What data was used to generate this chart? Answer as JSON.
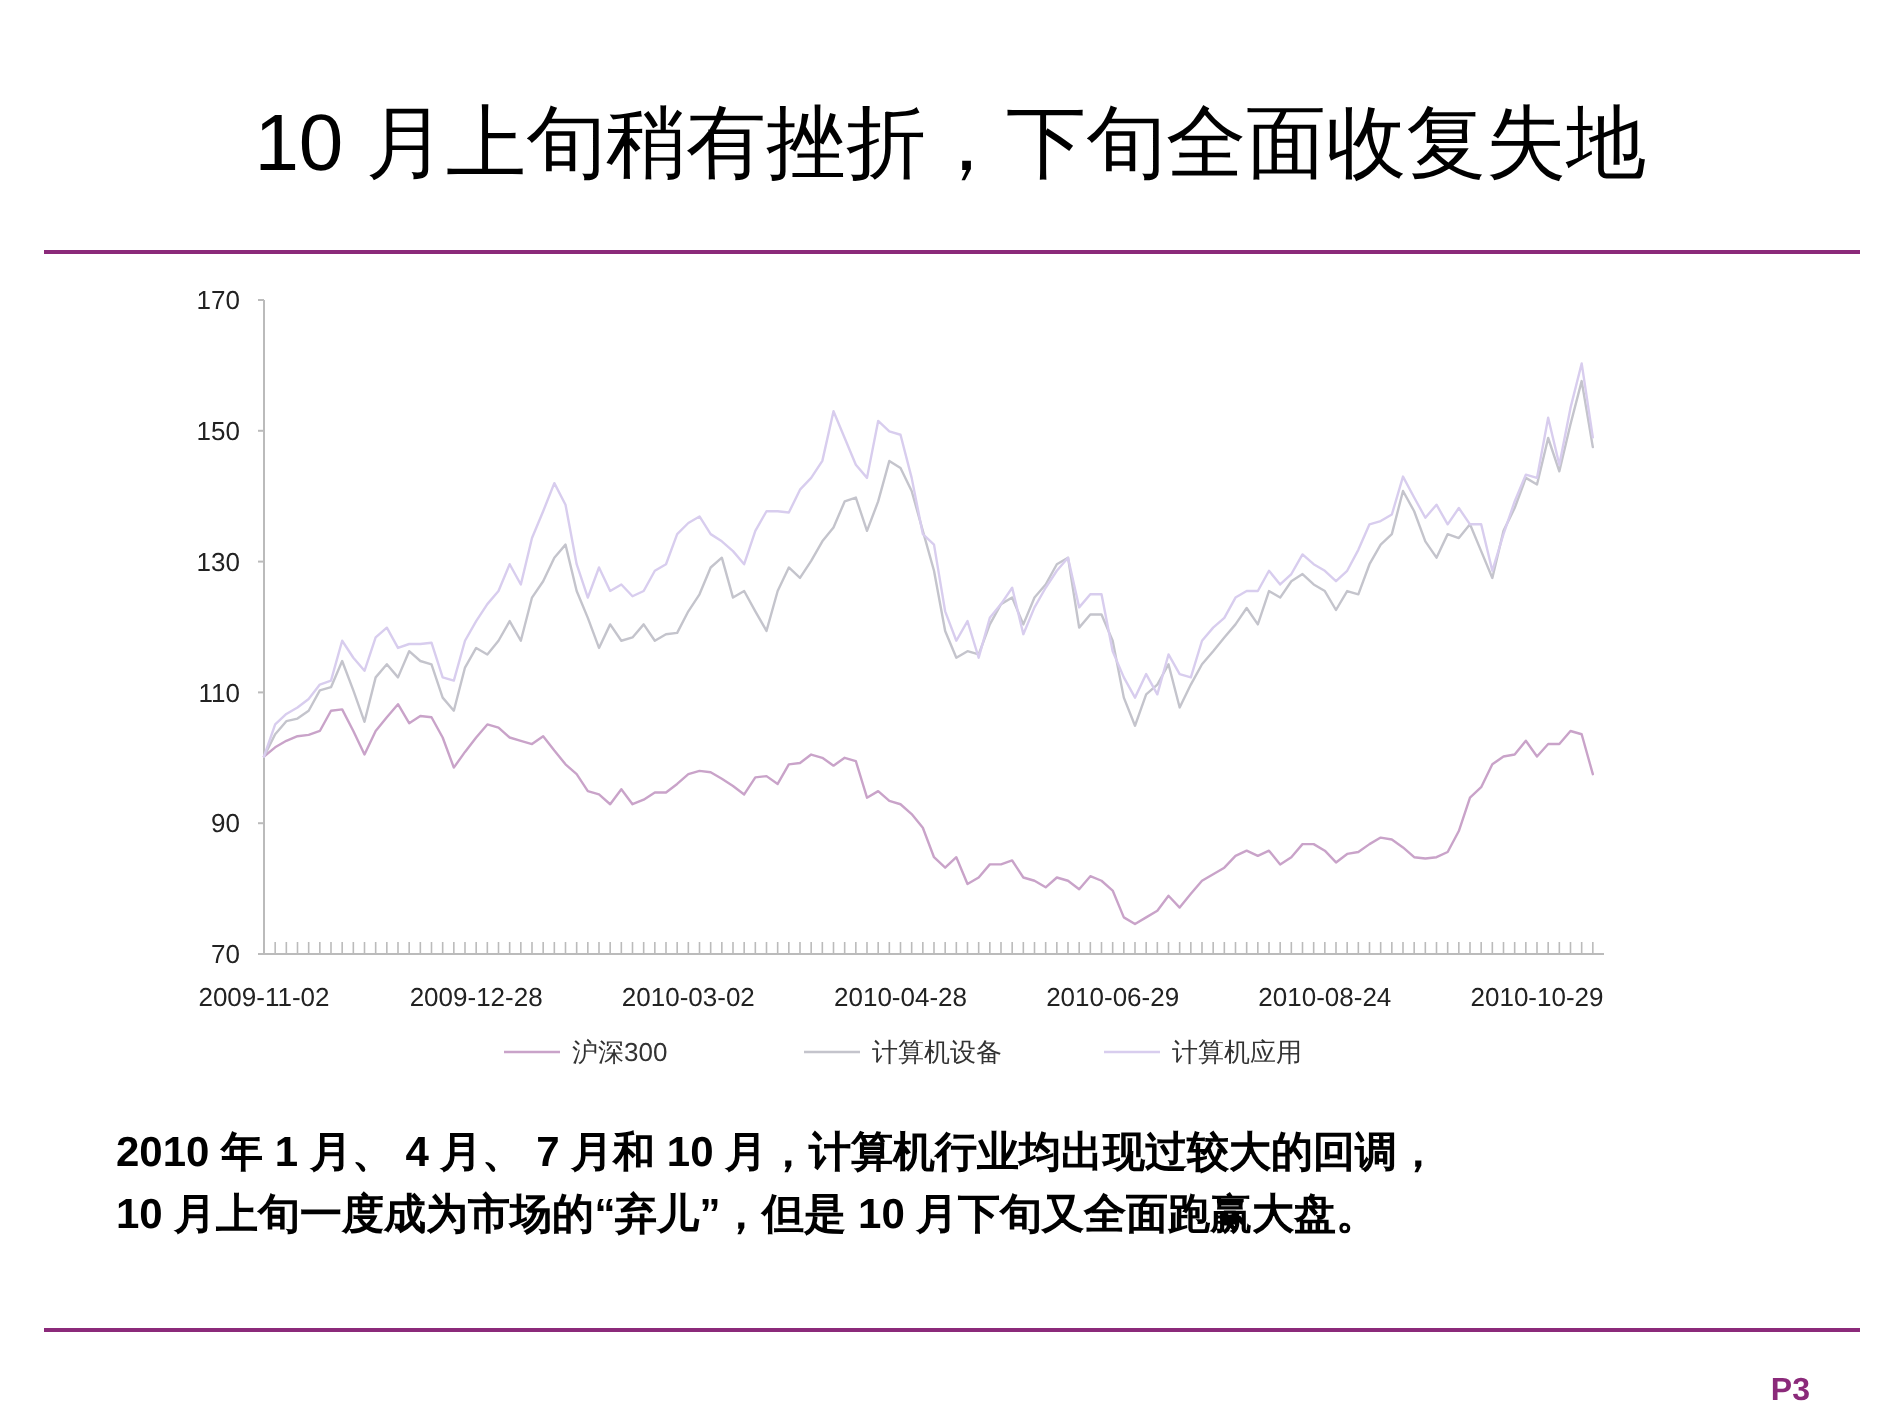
{
  "chart_data": {
    "type": "line",
    "title": "10 月上旬稍有挫折，下旬全面收复失地",
    "annotations": [
      "2010 年 1 月、 4 月、 7 月和 10 月，计算机行业均出现过较大的回调，",
      "10 月上旬一度成为市场的“弃儿”，但是 10 月下旬又全面跑赢大盘。",
      "P3"
    ],
    "categories": [
      "2009-11-02",
      null,
      null,
      null,
      null,
      null,
      null,
      null,
      null,
      null,
      null,
      null,
      null,
      null,
      null,
      null,
      null,
      null,
      null,
      "2009-12-28",
      null,
      null,
      null,
      null,
      null,
      null,
      null,
      null,
      null,
      null,
      null,
      null,
      null,
      null,
      null,
      null,
      null,
      null,
      "2010-03-02",
      null,
      null,
      null,
      null,
      null,
      null,
      null,
      null,
      null,
      null,
      null,
      null,
      null,
      null,
      null,
      null,
      null,
      null,
      "2010-04-28",
      null,
      null,
      null,
      null,
      null,
      null,
      null,
      null,
      null,
      null,
      null,
      null,
      null,
      null,
      null,
      null,
      null,
      null,
      "2010-06-29",
      null,
      null,
      null,
      null,
      null,
      null,
      null,
      null,
      null,
      null,
      null,
      null,
      null,
      null,
      null,
      null,
      null,
      null,
      "2010-08-24",
      null,
      null,
      null,
      null,
      null,
      null,
      null,
      null,
      null,
      null,
      null,
      null,
      null,
      null,
      null,
      null,
      null,
      null,
      "2010-10-29",
      null,
      null,
      null,
      null,
      null
    ],
    "ylim": [
      70,
      170
    ],
    "yticks": [
      70,
      90,
      110,
      130,
      150,
      170
    ],
    "legend": "bottom",
    "series": [
      {
        "name": "沪深300",
        "color": "#c9a3c9",
        "values": [
          100.2,
          101.6,
          102.6,
          103.3,
          103.5,
          104.1,
          107.2,
          107.4,
          104.1,
          100.5,
          104.1,
          106.2,
          108.2,
          105.3,
          106.4,
          106.2,
          103.1,
          98.5,
          100.9,
          103.1,
          105.1,
          104.6,
          103.1,
          102.6,
          102.1,
          103.3,
          101.1,
          99.0,
          97.5,
          94.9,
          94.4,
          92.9,
          95.2,
          92.9,
          93.6,
          94.7,
          94.7,
          96.0,
          97.5,
          98.0,
          97.8,
          96.8,
          95.7,
          94.4,
          97.0,
          97.2,
          96.0,
          99.0,
          99.2,
          100.5,
          100.0,
          98.8,
          100.0,
          99.5,
          93.9,
          94.9,
          93.4,
          92.9,
          91.4,
          89.3,
          84.8,
          83.2,
          84.8,
          80.7,
          81.7,
          83.7,
          83.7,
          84.3,
          81.7,
          81.2,
          80.2,
          81.7,
          81.2,
          79.9,
          81.9,
          81.2,
          79.7,
          75.6,
          74.6,
          75.6,
          76.6,
          78.9,
          77.1,
          79.2,
          81.2,
          82.2,
          83.2,
          85.0,
          85.8,
          85.0,
          85.8,
          83.7,
          84.8,
          86.8,
          86.8,
          85.8,
          84.0,
          85.3,
          85.6,
          86.8,
          87.8,
          87.5,
          86.3,
          84.8,
          84.6,
          84.8,
          85.6,
          88.8,
          93.9,
          95.5,
          99.0,
          100.2,
          100.5,
          102.6,
          100.2,
          102.1,
          102.1,
          104.1,
          103.6,
          97.5
        ]
      },
      {
        "name": "计算机设备",
        "color": "#c4c4cc",
        "values": [
          100.2,
          103.6,
          105.6,
          106.0,
          107.2,
          110.3,
          110.8,
          114.8,
          110.3,
          105.5,
          112.3,
          114.3,
          112.3,
          116.3,
          114.8,
          114.3,
          109.2,
          107.2,
          113.8,
          116.8,
          115.8,
          117.9,
          120.9,
          117.9,
          124.5,
          127.0,
          130.6,
          132.6,
          125.5,
          121.4,
          116.8,
          120.4,
          117.9,
          118.4,
          120.4,
          117.9,
          118.9,
          119.1,
          122.4,
          125.0,
          129.1,
          130.6,
          124.5,
          125.5,
          122.4,
          119.4,
          125.5,
          129.1,
          127.5,
          130.1,
          133.1,
          135.2,
          139.2,
          139.8,
          134.7,
          139.2,
          145.4,
          144.3,
          140.8,
          134.7,
          128.6,
          119.4,
          115.3,
          116.3,
          115.8,
          120.4,
          123.5,
          124.5,
          120.4,
          124.5,
          126.5,
          129.6,
          130.6,
          119.9,
          121.9,
          121.9,
          117.9,
          109.2,
          104.9,
          109.7,
          111.2,
          114.3,
          107.7,
          111.2,
          114.3,
          116.3,
          118.4,
          120.4,
          122.9,
          120.4,
          125.5,
          124.5,
          127.0,
          128.1,
          126.5,
          125.5,
          122.6,
          125.5,
          125.0,
          129.6,
          132.6,
          134.2,
          140.8,
          137.7,
          133.1,
          130.6,
          134.2,
          133.6,
          135.7,
          131.6,
          127.5,
          134.7,
          138.2,
          142.8,
          141.8,
          148.9,
          143.8,
          151.0,
          157.6,
          147.5
        ]
      },
      {
        "name": "计算机应用",
        "color": "#d8cdee",
        "values": [
          100.2,
          105.1,
          106.7,
          107.7,
          109.0,
          111.2,
          111.8,
          117.9,
          115.3,
          113.3,
          118.4,
          119.9,
          116.8,
          117.4,
          117.4,
          117.6,
          112.3,
          111.8,
          117.9,
          120.9,
          123.5,
          125.5,
          129.6,
          126.5,
          133.6,
          137.7,
          142.0,
          138.7,
          129.6,
          124.5,
          129.1,
          125.5,
          126.5,
          124.7,
          125.5,
          128.6,
          129.6,
          134.2,
          135.9,
          136.9,
          134.2,
          133.1,
          131.6,
          129.6,
          134.7,
          137.7,
          137.7,
          137.5,
          141.0,
          142.8,
          145.4,
          153.0,
          148.9,
          144.8,
          142.8,
          151.5,
          149.9,
          149.4,
          142.8,
          134.2,
          132.6,
          122.4,
          117.9,
          120.9,
          115.3,
          121.4,
          123.5,
          126.0,
          118.9,
          123.0,
          126.0,
          128.6,
          130.6,
          123.0,
          125.0,
          125.0,
          116.3,
          112.3,
          109.2,
          112.8,
          109.7,
          115.8,
          112.8,
          112.3,
          117.9,
          119.9,
          121.4,
          124.5,
          125.5,
          125.5,
          128.6,
          126.5,
          128.1,
          131.1,
          129.6,
          128.6,
          127.0,
          128.6,
          131.8,
          135.7,
          136.2,
          137.2,
          143.0,
          139.8,
          136.7,
          138.7,
          135.7,
          138.2,
          135.7,
          135.7,
          128.6,
          134.2,
          139.2,
          143.3,
          142.8,
          152.0,
          144.8,
          153.5,
          160.3,
          149.0
        ]
      }
    ]
  }
}
